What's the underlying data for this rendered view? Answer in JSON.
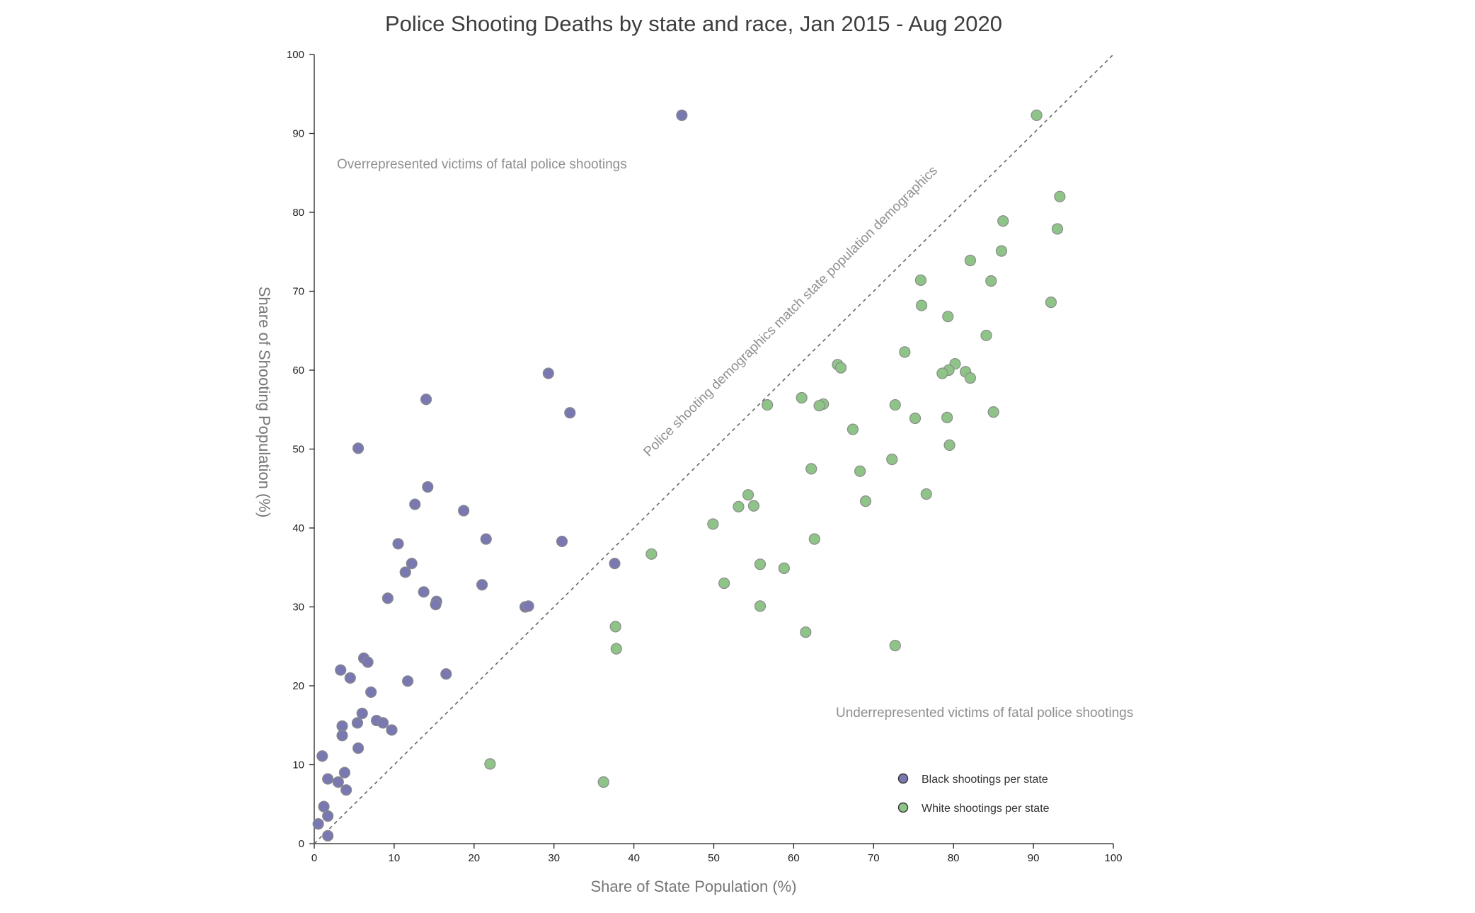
{
  "chart_data": {
    "type": "scatter",
    "title": "Police Shooting Deaths by state and race, Jan 2015 - Aug 2020",
    "xlabel": "Share of State Population (%)",
    "ylabel": "Share of Shooting Population (%)",
    "xlim": [
      0,
      100
    ],
    "ylim": [
      0,
      100
    ],
    "xticks": [
      "0",
      "10",
      "20",
      "30",
      "40",
      "50",
      "60",
      "70",
      "80",
      "90",
      "100"
    ],
    "yticks": [
      "0",
      "10",
      "20",
      "30",
      "40",
      "50",
      "60",
      "70",
      "80",
      "90",
      "100"
    ],
    "grid": false,
    "legend_position": "bottom-right",
    "annotations": {
      "over": "Overrepresented victims of fatal police shootings",
      "under": "Underrepresented victims of fatal police shootings",
      "diagonal": "Police shooting demographics match state population demographics"
    },
    "series": [
      {
        "name": "Black shootings per state",
        "color": "#7a78b0",
        "points": [
          [
            46.0,
            92.3
          ],
          [
            29.3,
            59.6
          ],
          [
            14.0,
            56.3
          ],
          [
            32.0,
            54.6
          ],
          [
            5.5,
            50.1
          ],
          [
            14.2,
            45.2
          ],
          [
            12.6,
            43.0
          ],
          [
            18.7,
            42.2
          ],
          [
            21.5,
            38.6
          ],
          [
            31.0,
            38.3
          ],
          [
            10.5,
            38.0
          ],
          [
            12.2,
            35.5
          ],
          [
            37.6,
            35.5
          ],
          [
            11.4,
            34.4
          ],
          [
            21.0,
            32.8
          ],
          [
            13.7,
            31.9
          ],
          [
            9.2,
            31.1
          ],
          [
            15.3,
            30.7
          ],
          [
            15.2,
            30.3
          ],
          [
            26.4,
            30.0
          ],
          [
            26.8,
            30.1
          ],
          [
            6.2,
            23.5
          ],
          [
            6.7,
            23.0
          ],
          [
            3.3,
            22.0
          ],
          [
            4.5,
            21.0
          ],
          [
            16.5,
            21.5
          ],
          [
            11.7,
            20.6
          ],
          [
            7.1,
            19.2
          ],
          [
            6.0,
            16.5
          ],
          [
            7.8,
            15.6
          ],
          [
            8.6,
            15.3
          ],
          [
            5.4,
            15.3
          ],
          [
            3.5,
            14.9
          ],
          [
            9.7,
            14.4
          ],
          [
            3.5,
            13.7
          ],
          [
            5.5,
            12.1
          ],
          [
            1.0,
            11.1
          ],
          [
            3.8,
            9.0
          ],
          [
            1.7,
            8.2
          ],
          [
            3.0,
            7.8
          ],
          [
            4.0,
            6.8
          ],
          [
            1.2,
            4.7
          ],
          [
            1.7,
            3.5
          ],
          [
            0.5,
            2.5
          ],
          [
            1.7,
            1.0
          ]
        ]
      },
      {
        "name": "White shootings per state",
        "color": "#8fc488",
        "points": [
          [
            90.4,
            92.3
          ],
          [
            93.3,
            82.0
          ],
          [
            86.2,
            78.9
          ],
          [
            93.0,
            77.9
          ],
          [
            86.0,
            75.1
          ],
          [
            82.1,
            73.9
          ],
          [
            75.9,
            71.4
          ],
          [
            84.7,
            71.3
          ],
          [
            92.2,
            68.6
          ],
          [
            76.0,
            68.2
          ],
          [
            79.3,
            66.8
          ],
          [
            84.1,
            64.4
          ],
          [
            73.9,
            62.3
          ],
          [
            65.5,
            60.7
          ],
          [
            65.9,
            60.3
          ],
          [
            80.2,
            60.8
          ],
          [
            79.4,
            60.0
          ],
          [
            78.6,
            59.6
          ],
          [
            81.5,
            59.8
          ],
          [
            82.1,
            59.0
          ],
          [
            61.0,
            56.5
          ],
          [
            63.7,
            55.7
          ],
          [
            63.2,
            55.5
          ],
          [
            56.7,
            55.6
          ],
          [
            72.7,
            55.6
          ],
          [
            75.2,
            53.9
          ],
          [
            79.2,
            54.0
          ],
          [
            85.0,
            54.7
          ],
          [
            67.4,
            52.5
          ],
          [
            79.5,
            50.5
          ],
          [
            72.3,
            48.7
          ],
          [
            62.2,
            47.5
          ],
          [
            68.3,
            47.2
          ],
          [
            54.3,
            44.2
          ],
          [
            76.6,
            44.3
          ],
          [
            69.0,
            43.4
          ],
          [
            53.1,
            42.7
          ],
          [
            55.0,
            42.8
          ],
          [
            49.9,
            40.5
          ],
          [
            62.6,
            38.6
          ],
          [
            42.2,
            36.7
          ],
          [
            55.8,
            35.4
          ],
          [
            58.8,
            34.9
          ],
          [
            51.3,
            33.0
          ],
          [
            55.8,
            30.1
          ],
          [
            37.7,
            27.5
          ],
          [
            61.5,
            26.8
          ],
          [
            37.8,
            24.7
          ],
          [
            72.7,
            25.1
          ],
          [
            22.0,
            10.1
          ],
          [
            36.2,
            7.8
          ]
        ]
      }
    ]
  }
}
